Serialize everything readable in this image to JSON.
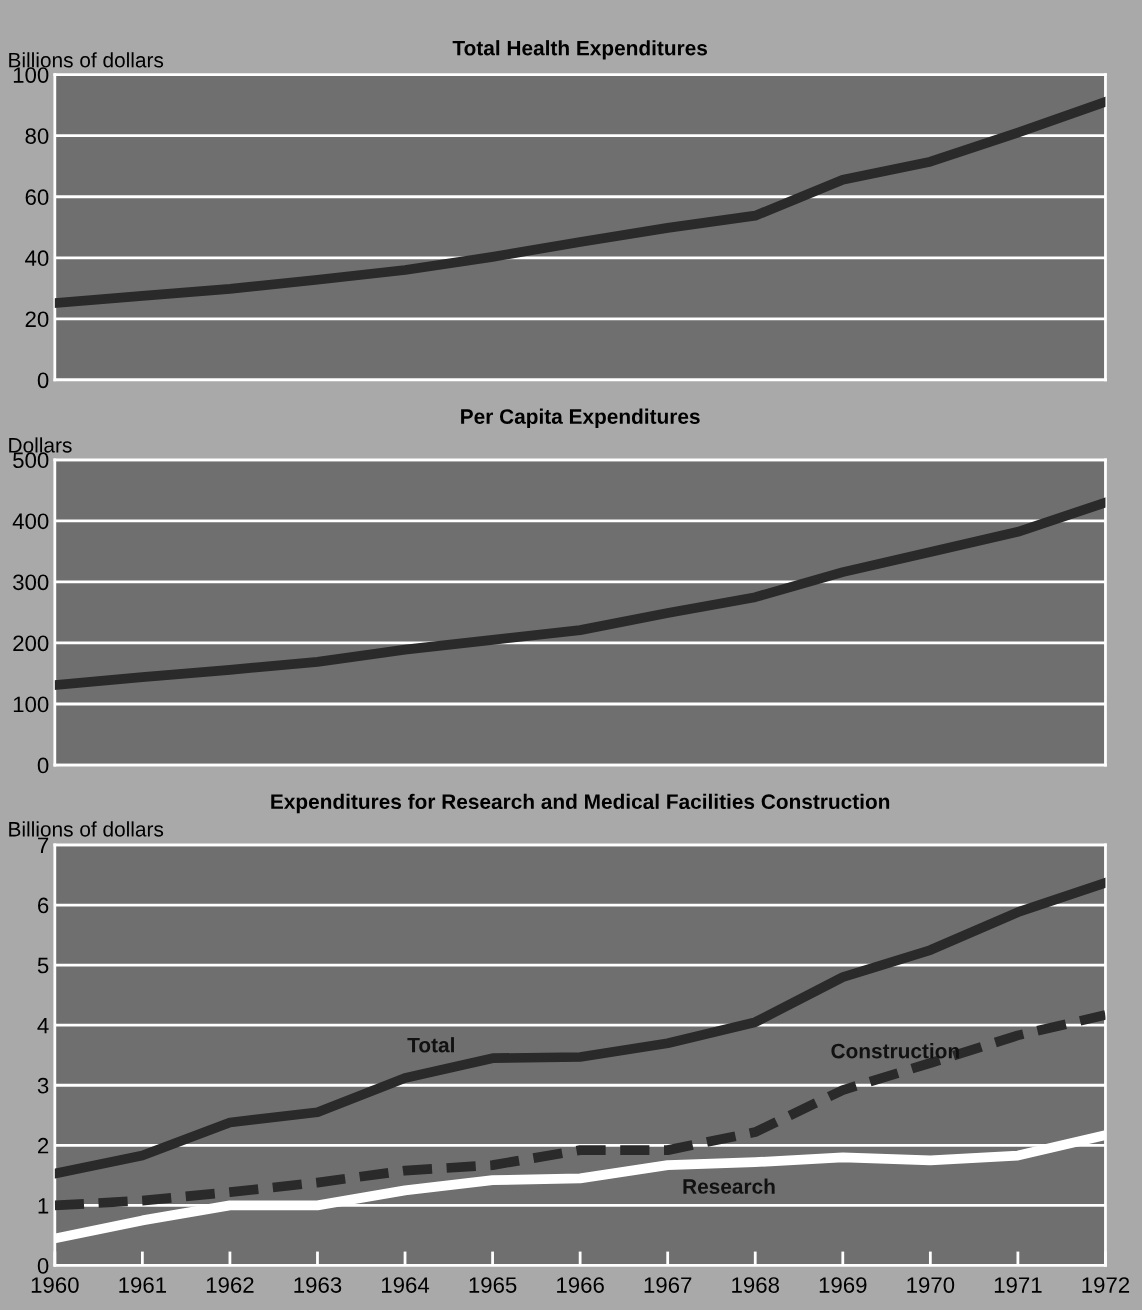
{
  "chart_data": [
    {
      "type": "line",
      "title": "Total Health Expenditures",
      "ylabel": "Billions of dollars",
      "x": [
        1960,
        1961,
        1962,
        1963,
        1964,
        1965,
        1966,
        1967,
        1968,
        1969,
        1970,
        1971,
        1972
      ],
      "xlim": [
        1960,
        1972
      ],
      "ylim": [
        0,
        100
      ],
      "yticks": [
        0,
        20,
        40,
        60,
        80,
        100
      ],
      "grid": "y",
      "tick_labels": "y",
      "legend": false,
      "marker": "none",
      "series": [
        {
          "color": "#2a2a2a",
          "line_style": "solid",
          "values": [
            25.2,
            27.5,
            29.8,
            32.8,
            36,
            40.3,
            45.2,
            49.8,
            53.8,
            65.6,
            71.5,
            81,
            91.1
          ]
        }
      ]
    },
    {
      "type": "line",
      "title": "Per Capita Expenditures",
      "ylabel": "Dollars",
      "x": [
        1960,
        1961,
        1962,
        1963,
        1964,
        1965,
        1966,
        1967,
        1968,
        1969,
        1970,
        1971,
        1972
      ],
      "xlim": [
        1960,
        1972
      ],
      "ylim": [
        0,
        500
      ],
      "yticks": [
        0,
        100,
        200,
        300,
        400,
        500
      ],
      "grid": "y",
      "tick_labels": "y",
      "legend": false,
      "marker": "none",
      "series": [
        {
          "color": "#2a2a2a",
          "line_style": "solid",
          "values": [
            131,
            144,
            156,
            169,
            189,
            205,
            221,
            249,
            275,
            316,
            349,
            382,
            430
          ]
        }
      ]
    },
    {
      "type": "line",
      "title": "Expenditures for Research and Medical Facilities Construction",
      "ylabel": "Billions of dollars",
      "x": [
        1960,
        1961,
        1962,
        1963,
        1964,
        1965,
        1966,
        1967,
        1968,
        1969,
        1970,
        1971,
        1972
      ],
      "xlim": [
        1960,
        1972
      ],
      "xticks": [
        1960,
        1961,
        1962,
        1963,
        1964,
        1965,
        1966,
        1967,
        1968,
        1969,
        1970,
        1971,
        1972
      ],
      "ylim": [
        0,
        7
      ],
      "yticks": [
        0,
        1,
        2,
        3,
        4,
        5,
        6,
        7
      ],
      "grid": "y",
      "legend": false,
      "marker": "none",
      "series": [
        {
          "name": "Total",
          "color": "#2a2a2a",
          "line_style": "solid",
          "values": [
            1.53,
            1.83,
            2.38,
            2.55,
            3.12,
            3.45,
            3.47,
            3.7,
            4.05,
            4.8,
            5.25,
            5.88,
            6.37
          ]
        },
        {
          "name": "Construction",
          "color": "#2a2a2a",
          "line_style": "dashed",
          "values": [
            1.0,
            1.08,
            1.22,
            1.38,
            1.58,
            1.67,
            1.92,
            1.92,
            2.22,
            2.92,
            3.37,
            3.83,
            4.17
          ]
        },
        {
          "name": "Research",
          "color": "#ffffff",
          "line_style": "solid",
          "values": [
            0.45,
            0.75,
            1.0,
            1.0,
            1.25,
            1.42,
            1.45,
            1.67,
            1.72,
            1.8,
            1.75,
            1.83,
            2.17
          ]
        }
      ]
    }
  ]
}
